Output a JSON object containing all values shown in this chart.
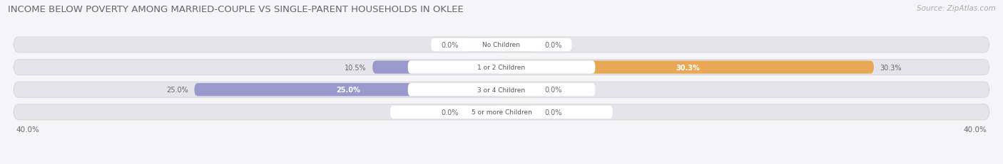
{
  "title": "INCOME BELOW POVERTY AMONG MARRIED-COUPLE VS SINGLE-PARENT HOUSEHOLDS IN OKLEE",
  "source": "Source: ZipAtlas.com",
  "categories": [
    "No Children",
    "1 or 2 Children",
    "3 or 4 Children",
    "5 or more Children"
  ],
  "married_values": [
    0.0,
    10.5,
    25.0,
    0.0
  ],
  "single_values": [
    0.0,
    30.3,
    0.0,
    0.0
  ],
  "married_color": "#9999cc",
  "single_color": "#e8a855",
  "married_color_light": "#ccccdd",
  "single_color_light": "#f0cfa0",
  "bar_bg_color": "#e4e4ea",
  "bar_bg_border": "#d0d0d8",
  "axis_max": 40.0,
  "title_fontsize": 9.5,
  "source_fontsize": 7.5,
  "value_fontsize": 7.0,
  "category_fontsize": 6.5,
  "legend_fontsize": 7.5,
  "axis_label_fontsize": 7.5,
  "background_color": "#f5f5f8",
  "stub_size": 3.0
}
